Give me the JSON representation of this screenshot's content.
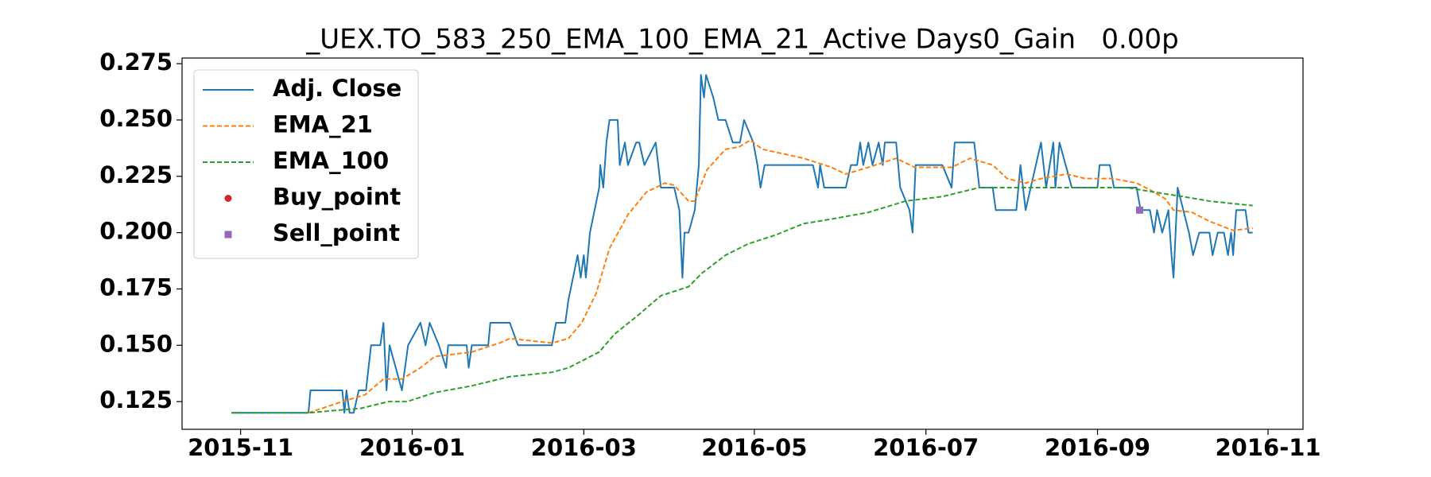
{
  "chart_data": {
    "type": "line",
    "title": "_UEX.TO_583_250_EMA_100_EMA_21_Active Days0_Gain   0.00p",
    "xlim": [
      2015.776,
      2016.867
    ],
    "xticks": [
      {
        "value": 2015.833,
        "label": "2015-11"
      },
      {
        "value": 2016.0,
        "label": "2016-01"
      },
      {
        "value": 2016.167,
        "label": "2016-03"
      },
      {
        "value": 2016.333,
        "label": "2016-05"
      },
      {
        "value": 2016.5,
        "label": "2016-07"
      },
      {
        "value": 2016.667,
        "label": "2016-09"
      },
      {
        "value": 2016.833,
        "label": "2016-11"
      }
    ],
    "ylim": [
      0.1127,
      0.2775
    ],
    "yticks": [
      0.125,
      {
        "value": 0.15,
        "label": "0.150"
      },
      0.175,
      {
        "value": 0.2,
        "label": "0.200"
      },
      0.225,
      {
        "value": 0.25,
        "label": "0.250"
      },
      0.275
    ],
    "legend": "upper left",
    "series": [
      {
        "name": "Adj. Close",
        "color": "#1f77b4",
        "style": "solid",
        "x": [
          2015.824,
          2015.899,
          2015.901,
          2015.932,
          2015.934,
          2015.936,
          2015.939,
          2015.943,
          2015.948,
          2015.955,
          2015.96,
          2015.969,
          2015.972,
          2015.975,
          2015.978,
          2015.99,
          2015.996,
          2016.008,
          2016.013,
          2016.017,
          2016.026,
          2016.033,
          2016.035,
          2016.053,
          2016.055,
          2016.058,
          2016.074,
          2016.076,
          2016.095,
          2016.103,
          2016.136,
          2016.14,
          2016.149,
          2016.152,
          2016.161,
          2016.164,
          2016.167,
          2016.169,
          2016.173,
          2016.182,
          2016.183,
          2016.186,
          2016.189,
          2016.192,
          2016.2,
          2016.202,
          2016.207,
          2016.21,
          2016.218,
          2016.221,
          2016.226,
          2016.237,
          2016.242,
          2016.255,
          2016.26,
          2016.263,
          2016.265,
          2016.269,
          2016.275,
          2016.279,
          2016.281,
          2016.284,
          2016.286,
          2016.293,
          2016.298,
          2016.305,
          2016.312,
          2016.319,
          2016.323,
          2016.332,
          2016.336,
          2016.339,
          2016.343,
          2016.39,
          2016.395,
          2016.397,
          2016.401,
          2016.422,
          2016.427,
          2016.433,
          2016.436,
          2016.439,
          2016.444,
          2016.448,
          2016.454,
          2016.458,
          2016.46,
          2016.471,
          2016.475,
          2016.484,
          2016.487,
          2016.49,
          2016.516,
          2016.525,
          2016.528,
          2016.547,
          2016.552,
          2016.565,
          2016.568,
          2016.588,
          2016.59,
          2016.592,
          2016.597,
          2016.602,
          2016.612,
          2016.617,
          2016.624,
          2016.626,
          2016.63,
          2016.642,
          2016.667,
          2016.669,
          2016.679,
          2016.683,
          2016.705,
          2016.709,
          2016.718,
          2016.722,
          2016.725,
          2016.73,
          2016.736,
          2016.739,
          2016.741,
          2016.745,
          2016.756,
          2016.76,
          2016.766,
          2016.776,
          2016.779,
          2016.784,
          2016.79,
          2016.794,
          2016.797,
          2016.799,
          2016.802,
          2016.811,
          2016.814,
          2016.818
        ],
        "values": [
          0.12,
          0.12,
          0.13,
          0.13,
          0.12,
          0.13,
          0.12,
          0.12,
          0.13,
          0.13,
          0.15,
          0.15,
          0.16,
          0.13,
          0.15,
          0.13,
          0.15,
          0.16,
          0.15,
          0.16,
          0.15,
          0.14,
          0.15,
          0.15,
          0.14,
          0.15,
          0.15,
          0.16,
          0.16,
          0.15,
          0.15,
          0.16,
          0.16,
          0.17,
          0.19,
          0.18,
          0.19,
          0.18,
          0.2,
          0.22,
          0.23,
          0.22,
          0.24,
          0.25,
          0.25,
          0.23,
          0.24,
          0.23,
          0.24,
          0.24,
          0.23,
          0.24,
          0.22,
          0.22,
          0.21,
          0.18,
          0.2,
          0.2,
          0.21,
          0.23,
          0.27,
          0.26,
          0.27,
          0.26,
          0.25,
          0.25,
          0.24,
          0.24,
          0.25,
          0.24,
          0.23,
          0.22,
          0.23,
          0.23,
          0.22,
          0.23,
          0.22,
          0.22,
          0.23,
          0.23,
          0.24,
          0.23,
          0.24,
          0.23,
          0.24,
          0.23,
          0.24,
          0.24,
          0.22,
          0.21,
          0.2,
          0.23,
          0.23,
          0.22,
          0.24,
          0.24,
          0.22,
          0.22,
          0.21,
          0.21,
          0.22,
          0.23,
          0.21,
          0.22,
          0.24,
          0.22,
          0.24,
          0.22,
          0.24,
          0.22,
          0.22,
          0.23,
          0.23,
          0.22,
          0.22,
          0.21,
          0.21,
          0.2,
          0.21,
          0.2,
          0.21,
          0.19,
          0.18,
          0.22,
          0.2,
          0.19,
          0.2,
          0.2,
          0.19,
          0.2,
          0.2,
          0.19,
          0.2,
          0.19,
          0.21,
          0.21,
          0.2,
          0.2
        ]
      },
      {
        "name": "EMA_21",
        "color": "#ff7f0e",
        "style": "dashed",
        "x": [
          2015.899,
          2015.932,
          2015.954,
          2015.972,
          2015.99,
          2016.008,
          2016.022,
          2016.058,
          2016.085,
          2016.095,
          2016.136,
          2016.152,
          2016.165,
          2016.179,
          2016.192,
          2016.21,
          2016.228,
          2016.246,
          2016.255,
          2016.269,
          2016.275,
          2016.287,
          2016.305,
          2016.318,
          2016.329,
          2016.341,
          2016.381,
          2016.408,
          2016.422,
          2016.444,
          2016.471,
          2016.489,
          2016.525,
          2016.543,
          2016.565,
          2016.579,
          2016.597,
          2016.612,
          2016.637,
          2016.655,
          2016.682,
          2016.705,
          2016.718,
          2016.733,
          2016.741,
          2016.759,
          2016.776,
          2016.799,
          2016.818
        ],
        "values": [
          0.12,
          0.125,
          0.128,
          0.135,
          0.135,
          0.14,
          0.145,
          0.147,
          0.151,
          0.153,
          0.151,
          0.153,
          0.16,
          0.173,
          0.193,
          0.208,
          0.218,
          0.222,
          0.221,
          0.214,
          0.214,
          0.228,
          0.237,
          0.238,
          0.241,
          0.237,
          0.233,
          0.229,
          0.226,
          0.229,
          0.233,
          0.229,
          0.229,
          0.233,
          0.23,
          0.224,
          0.222,
          0.224,
          0.226,
          0.224,
          0.224,
          0.222,
          0.219,
          0.215,
          0.21,
          0.209,
          0.205,
          0.201,
          0.202
        ]
      },
      {
        "name": "EMA_100",
        "color": "#2ca02c",
        "style": "dashed",
        "x": [
          2015.824,
          2015.899,
          2015.923,
          2015.95,
          2015.977,
          2015.995,
          2016.022,
          2016.058,
          2016.094,
          2016.136,
          2016.152,
          2016.165,
          2016.182,
          2016.197,
          2016.219,
          2016.242,
          2016.269,
          2016.282,
          2016.305,
          2016.327,
          2016.354,
          2016.381,
          2016.408,
          2016.444,
          2016.48,
          2016.516,
          2016.552,
          2016.597,
          2016.642,
          2016.696,
          2016.722,
          2016.75,
          2016.776,
          2016.818
        ],
        "values": [
          0.12,
          0.12,
          0.121,
          0.122,
          0.125,
          0.125,
          0.129,
          0.132,
          0.136,
          0.138,
          0.14,
          0.143,
          0.147,
          0.155,
          0.163,
          0.172,
          0.176,
          0.182,
          0.19,
          0.195,
          0.199,
          0.204,
          0.206,
          0.209,
          0.214,
          0.216,
          0.22,
          0.22,
          0.22,
          0.22,
          0.218,
          0.216,
          0.214,
          0.212
        ]
      },
      {
        "name": "Buy_point",
        "color": "#d62728",
        "style": "none",
        "marker": "circle",
        "x": [],
        "values": []
      },
      {
        "name": "Sell_point",
        "color": "#9467bd",
        "style": "none",
        "marker": "square",
        "x": [
          2016.708
        ],
        "values": [
          0.21
        ]
      }
    ]
  }
}
